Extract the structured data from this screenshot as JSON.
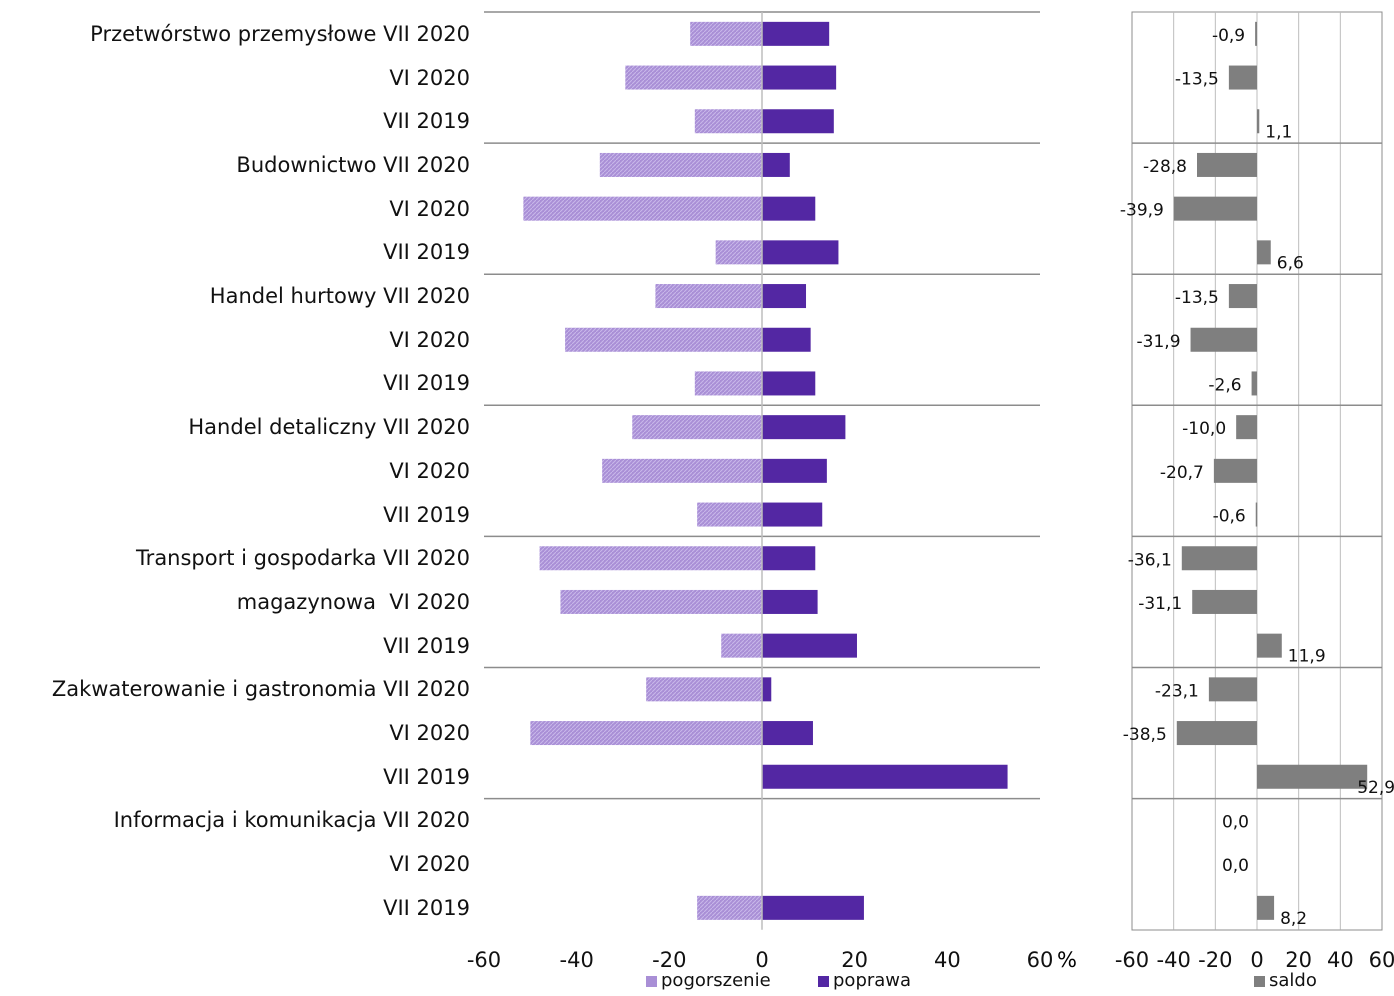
{
  "colors": {
    "pogorszenie": "#a98fd6",
    "poprawa": "#5327a3",
    "saldo": "#7f7f7f",
    "grid": "#bdbdbd",
    "separator": "#8c8c8c"
  },
  "row_labels": [
    "Przetwórstwo przemysłowe VII 2020",
    "VI 2020",
    "VII 2019",
    "Budownictwo VII 2020",
    "VI 2020",
    "VII 2019",
    "Handel hurtowy VII 2020",
    "VI 2020",
    "VII 2019",
    "Handel detaliczny VII 2020",
    "VI 2020",
    "VII 2019",
    "Transport i gospodarka VII 2020",
    "magazynowa  VI 2020",
    "VII 2019",
    "Zakwaterowanie i gastronomia VII 2020",
    "VI 2020",
    "VII 2019",
    "Informacja i komunikacja VII 2020",
    "VI 2020",
    "VII 2019"
  ],
  "chart_data": [
    {
      "type": "bar",
      "orientation": "horizontal",
      "stacking": "diverging",
      "xlim": [
        -60,
        60
      ],
      "xticks": [
        "-60",
        "-40",
        "-20",
        "0",
        "20",
        "40",
        "60"
      ],
      "x_unit": "%",
      "grid": false,
      "legend_position": "bottom",
      "series": [
        {
          "name": "pogorszenie",
          "values": [
            -15.5,
            -29.5,
            -14.5,
            -35,
            -51.5,
            -10,
            -23,
            -42.5,
            -14.5,
            -28,
            -34.5,
            -14,
            -48,
            -43.5,
            -8.8,
            -25,
            -50,
            0,
            0,
            0,
            -14
          ]
        },
        {
          "name": "poprawa",
          "values": [
            14.5,
            16,
            15.5,
            6,
            11.5,
            16.5,
            9.5,
            10.5,
            11.5,
            18,
            14,
            13,
            11.5,
            12,
            20.5,
            2,
            11,
            53,
            0,
            0,
            22
          ]
        }
      ]
    },
    {
      "type": "bar",
      "orientation": "horizontal",
      "xlim": [
        -60,
        60
      ],
      "xticks": [
        "-60",
        "-40",
        "-20",
        "0",
        "20",
        "40",
        "60"
      ],
      "grid": "vertical",
      "legend_position": "bottom",
      "series": [
        {
          "name": "saldo",
          "values": [
            -0.9,
            -13.5,
            1.1,
            -28.8,
            -39.9,
            6.6,
            -13.5,
            -31.9,
            -2.6,
            -10.0,
            -20.7,
            -0.6,
            -36.1,
            -31.1,
            11.9,
            -23.1,
            -38.5,
            52.9,
            0.0,
            0.0,
            8.2
          ],
          "labels": [
            "-0,9",
            "-13,5",
            "1,1",
            "-28,8",
            "-39,9",
            "6,6",
            "-13,5",
            "-31,9",
            "-2,6",
            "-10,0",
            "-20,7",
            "-0,6",
            "-36,1",
            "-31,1",
            "11,9",
            "-23,1",
            "-38,5",
            "52,9",
            "0,0",
            "0,0",
            "8,2"
          ]
        }
      ]
    }
  ],
  "legend": {
    "pogorszenie": "pogorszenie",
    "poprawa": "poprawa",
    "saldo": "saldo"
  }
}
